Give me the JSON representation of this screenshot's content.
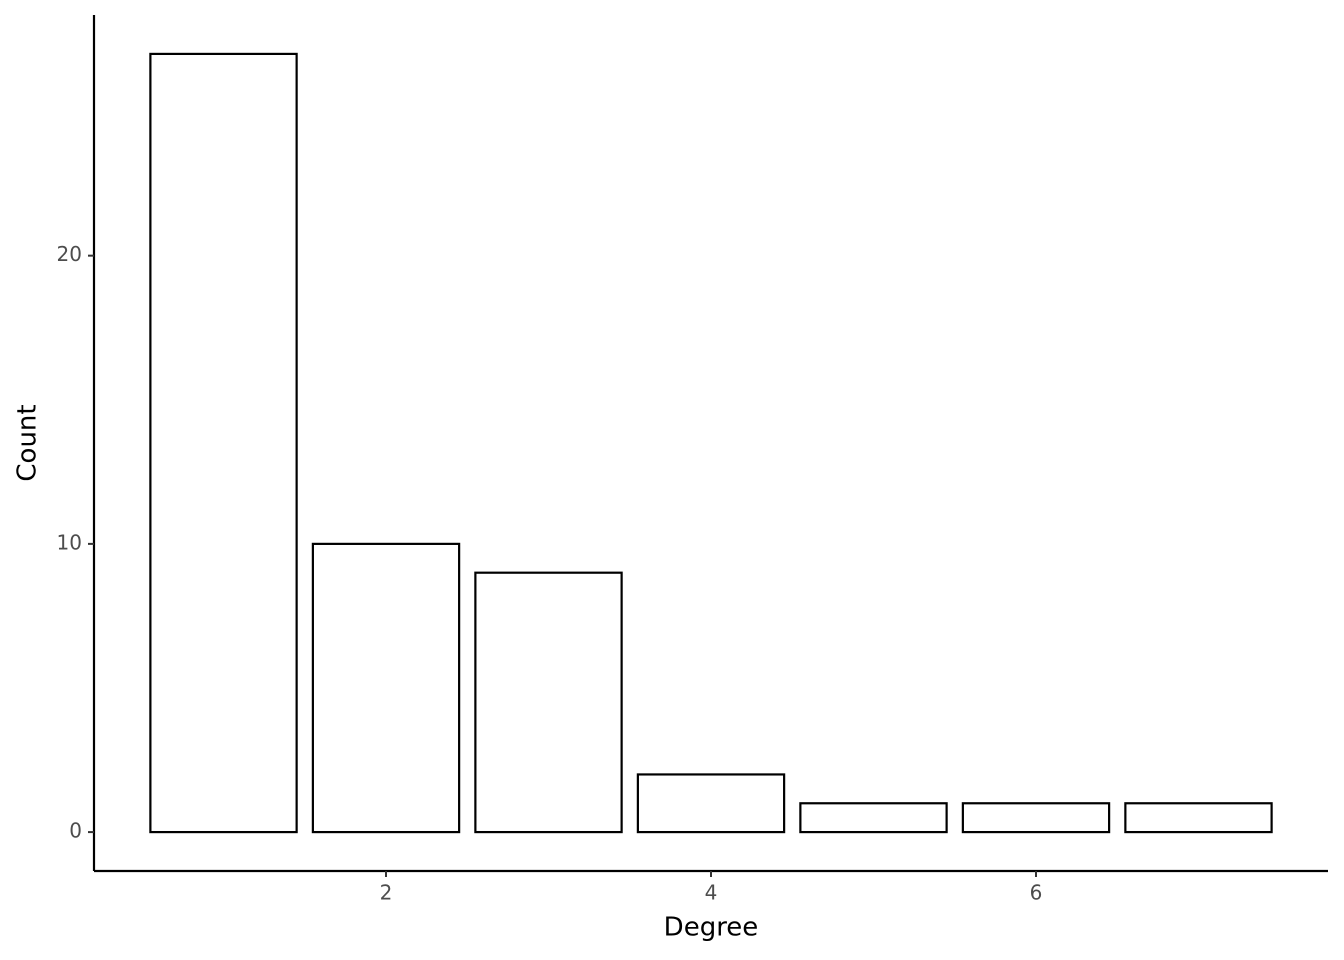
{
  "chart_data": {
    "type": "bar",
    "x_label": "Degree",
    "y_label": "Count",
    "x": [
      1,
      2,
      3,
      4,
      5,
      6,
      7
    ],
    "values": [
      27,
      10,
      9,
      2,
      1,
      1,
      1
    ],
    "color": "#ffffff",
    "edgecolor": "#000000",
    "xlim": [
      0.203,
      7.797
    ],
    "xticks": [
      2,
      4,
      6
    ],
    "ylim": [
      -1.35,
      28.35
    ],
    "yticks": [
      0,
      10,
      20
    ],
    "grid": false
  }
}
